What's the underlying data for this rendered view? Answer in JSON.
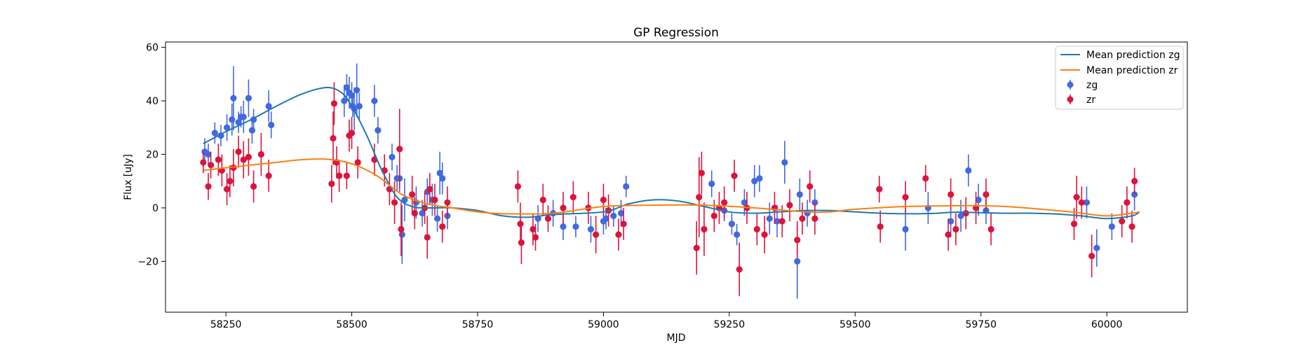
{
  "chart_data": {
    "type": "scatter",
    "title": "GP Regression",
    "xlabel": "MJD",
    "ylabel": "Flux [uJy]",
    "xlim": [
      58130,
      60160
    ],
    "ylim": [
      -39,
      62
    ],
    "xticks": [
      58250,
      58500,
      58750,
      59000,
      59250,
      59500,
      59750,
      60000
    ],
    "yticks": [
      -20,
      0,
      20,
      40,
      60
    ],
    "legend_position": "top-right",
    "colors": {
      "mean_zg": "#1f77b4",
      "mean_zr": "#ff7f0e",
      "zg": "#4169e1",
      "zr": "#dc143c"
    },
    "series": [
      {
        "name": "Mean prediction zg",
        "kind": "line",
        "color": "#1f77b4",
        "points": [
          [
            58205,
            24
          ],
          [
            58250,
            28.5
          ],
          [
            58300,
            33
          ],
          [
            58350,
            38
          ],
          [
            58400,
            42.5
          ],
          [
            58450,
            45
          ],
          [
            58480,
            43
          ],
          [
            58500,
            38
          ],
          [
            58530,
            27
          ],
          [
            58560,
            14
          ],
          [
            58590,
            4
          ],
          [
            58620,
            0.5
          ],
          [
            58650,
            0
          ],
          [
            58700,
            0
          ],
          [
            58750,
            -1
          ],
          [
            58800,
            -3
          ],
          [
            58850,
            -3.5
          ],
          [
            58900,
            -2.5
          ],
          [
            59000,
            -1.5
          ],
          [
            59050,
            1.5
          ],
          [
            59100,
            3
          ],
          [
            59150,
            2.5
          ],
          [
            59200,
            0.5
          ],
          [
            59250,
            -1.5
          ],
          [
            59300,
            -2
          ],
          [
            59350,
            -1.5
          ],
          [
            59400,
            -1
          ],
          [
            59450,
            -1
          ],
          [
            59500,
            -1.5
          ],
          [
            59550,
            -2
          ],
          [
            59600,
            -2.2
          ],
          [
            59650,
            -2.1
          ],
          [
            59700,
            -1.6
          ],
          [
            59750,
            -1.8
          ],
          [
            59800,
            -2
          ],
          [
            59850,
            -2
          ],
          [
            59900,
            -2.3
          ],
          [
            59950,
            -3
          ],
          [
            60000,
            -4
          ],
          [
            60050,
            -3
          ],
          [
            60065,
            -1.5
          ]
        ]
      },
      {
        "name": "Mean prediction zr",
        "kind": "line",
        "color": "#ff7f0e",
        "points": [
          [
            58205,
            14
          ],
          [
            58250,
            15
          ],
          [
            58300,
            16
          ],
          [
            58350,
            17
          ],
          [
            58400,
            18
          ],
          [
            58450,
            18.2
          ],
          [
            58500,
            16.5
          ],
          [
            58550,
            12
          ],
          [
            58600,
            5
          ],
          [
            58650,
            1.5
          ],
          [
            58700,
            0
          ],
          [
            58750,
            -1.5
          ],
          [
            58800,
            -2.2
          ],
          [
            58900,
            -2
          ],
          [
            59000,
            0.5
          ],
          [
            59100,
            1
          ],
          [
            59200,
            1
          ],
          [
            59300,
            0
          ],
          [
            59400,
            -1.5
          ],
          [
            59450,
            -1.5
          ],
          [
            59500,
            -0.5
          ],
          [
            59600,
            0.5
          ],
          [
            59700,
            0.8
          ],
          [
            59750,
            0.8
          ],
          [
            59800,
            0.5
          ],
          [
            59900,
            -1
          ],
          [
            59950,
            -2
          ],
          [
            60000,
            -3
          ],
          [
            60050,
            -2
          ],
          [
            60065,
            -1.5
          ]
        ]
      },
      {
        "name": "zg",
        "kind": "errorbar",
        "color": "#4169e1",
        "points": [
          [
            58208,
            21,
            5
          ],
          [
            58215,
            20,
            4
          ],
          [
            58228,
            28,
            4
          ],
          [
            58240,
            27,
            4
          ],
          [
            58252,
            30,
            5
          ],
          [
            58262,
            33,
            6
          ],
          [
            58265,
            41,
            12
          ],
          [
            58275,
            32,
            4
          ],
          [
            58280,
            34,
            4
          ],
          [
            58285,
            34,
            6
          ],
          [
            58295,
            41,
            7
          ],
          [
            58302,
            29,
            5
          ],
          [
            58305,
            33,
            4
          ],
          [
            58335,
            38,
            6
          ],
          [
            58340,
            31,
            5
          ],
          [
            58485,
            40,
            6
          ],
          [
            58490,
            45,
            5
          ],
          [
            58495,
            43,
            6
          ],
          [
            58500,
            42,
            5
          ],
          [
            58502,
            38,
            4
          ],
          [
            58505,
            37,
            8
          ],
          [
            58510,
            44,
            10
          ],
          [
            58515,
            38,
            5
          ],
          [
            58545,
            40,
            6
          ],
          [
            58552,
            29,
            5
          ],
          [
            58580,
            19,
            5
          ],
          [
            58590,
            11,
            5
          ],
          [
            58595,
            11,
            5
          ],
          [
            58600,
            -10,
            11
          ],
          [
            58605,
            3,
            8
          ],
          [
            58628,
            2,
            6
          ],
          [
            58640,
            -2,
            5
          ],
          [
            58650,
            6,
            5
          ],
          [
            58660,
            3,
            6
          ],
          [
            58670,
            -4,
            5
          ],
          [
            58675,
            13,
            8
          ],
          [
            58680,
            11,
            6
          ],
          [
            58690,
            -3,
            5
          ],
          [
            58870,
            -4,
            5
          ],
          [
            58900,
            -2,
            5
          ],
          [
            58920,
            -7,
            5
          ],
          [
            58945,
            -7,
            4
          ],
          [
            58975,
            -8,
            5
          ],
          [
            59000,
            -5,
            5
          ],
          [
            59005,
            -4,
            4
          ],
          [
            59020,
            -3,
            4
          ],
          [
            59035,
            -2,
            5
          ],
          [
            59045,
            8,
            4
          ],
          [
            59215,
            9,
            5
          ],
          [
            59240,
            -1,
            4
          ],
          [
            59255,
            -6,
            4
          ],
          [
            59265,
            -10,
            4
          ],
          [
            59280,
            2,
            5
          ],
          [
            59300,
            10,
            6
          ],
          [
            59310,
            11,
            5
          ],
          [
            59330,
            -4,
            6
          ],
          [
            59345,
            -5,
            6
          ],
          [
            59360,
            17,
            8
          ],
          [
            59385,
            -20,
            14
          ],
          [
            59390,
            5,
            6
          ],
          [
            59405,
            -2,
            5
          ],
          [
            59420,
            2,
            5
          ],
          [
            59600,
            -8,
            8
          ],
          [
            59645,
            0,
            6
          ],
          [
            59690,
            -5,
            6
          ],
          [
            59710,
            -3,
            6
          ],
          [
            59725,
            14,
            6
          ],
          [
            59745,
            3,
            6
          ],
          [
            59760,
            -1,
            5
          ],
          [
            59960,
            2,
            6
          ],
          [
            59980,
            -15,
            7
          ],
          [
            60010,
            -7,
            5
          ],
          [
            60055,
            5,
            6
          ]
        ]
      },
      {
        "name": "zr",
        "kind": "errorbar",
        "color": "#dc143c",
        "points": [
          [
            58205,
            17,
            4
          ],
          [
            58215,
            8,
            5
          ],
          [
            58220,
            16,
            5
          ],
          [
            58235,
            18,
            6
          ],
          [
            58242,
            14,
            6
          ],
          [
            58252,
            7,
            6
          ],
          [
            58258,
            10,
            6
          ],
          [
            58265,
            15,
            7
          ],
          [
            58275,
            21,
            6
          ],
          [
            58285,
            18,
            7
          ],
          [
            58295,
            19,
            7
          ],
          [
            58305,
            8,
            6
          ],
          [
            58320,
            20,
            8
          ],
          [
            58335,
            12,
            6
          ],
          [
            58460,
            9,
            7
          ],
          [
            58463,
            26,
            10
          ],
          [
            58465,
            39,
            8
          ],
          [
            58470,
            17,
            6
          ],
          [
            58475,
            12,
            6
          ],
          [
            58490,
            12,
            5
          ],
          [
            58495,
            27,
            6
          ],
          [
            58500,
            28,
            6
          ],
          [
            58512,
            17,
            6
          ],
          [
            58545,
            18,
            6
          ],
          [
            58565,
            14,
            6
          ],
          [
            58575,
            7,
            6
          ],
          [
            58585,
            2,
            8
          ],
          [
            58595,
            22,
            15
          ],
          [
            58598,
            -8,
            10
          ],
          [
            58620,
            5,
            7
          ],
          [
            58625,
            -2,
            6
          ],
          [
            58645,
            0,
            6
          ],
          [
            58650,
            -11,
            8
          ],
          [
            58655,
            7,
            6
          ],
          [
            58665,
            3,
            6
          ],
          [
            58680,
            -7,
            6
          ],
          [
            58690,
            2,
            6
          ],
          [
            58830,
            8,
            6
          ],
          [
            58835,
            -6,
            8
          ],
          [
            58837,
            -13,
            8
          ],
          [
            58860,
            -8,
            6
          ],
          [
            58865,
            -11,
            5
          ],
          [
            58880,
            3,
            6
          ],
          [
            58890,
            -4,
            5
          ],
          [
            58920,
            0,
            6
          ],
          [
            58940,
            4,
            6
          ],
          [
            58970,
            0,
            6
          ],
          [
            58985,
            -10,
            7
          ],
          [
            59000,
            3,
            6
          ],
          [
            59010,
            -1,
            6
          ],
          [
            59030,
            -10,
            6
          ],
          [
            59040,
            -6,
            6
          ],
          [
            59185,
            -15,
            10
          ],
          [
            59190,
            4,
            15
          ],
          [
            59195,
            13,
            8
          ],
          [
            59200,
            -8,
            10
          ],
          [
            59220,
            -3,
            6
          ],
          [
            59230,
            0,
            6
          ],
          [
            59240,
            2,
            6
          ],
          [
            59260,
            12,
            6
          ],
          [
            59270,
            -23,
            10
          ],
          [
            59285,
            0,
            6
          ],
          [
            59305,
            -8,
            6
          ],
          [
            59320,
            -10,
            7
          ],
          [
            59340,
            0,
            6
          ],
          [
            59355,
            -5,
            6
          ],
          [
            59370,
            1,
            6
          ],
          [
            59385,
            -12,
            7
          ],
          [
            59395,
            -4,
            6
          ],
          [
            59410,
            8,
            6
          ],
          [
            59420,
            -4,
            6
          ],
          [
            59548,
            7,
            5
          ],
          [
            59550,
            -7,
            6
          ],
          [
            59600,
            4,
            6
          ],
          [
            59640,
            11,
            5
          ],
          [
            59685,
            -10,
            6
          ],
          [
            59690,
            5,
            6
          ],
          [
            59700,
            -8,
            6
          ],
          [
            59720,
            -2,
            6
          ],
          [
            59740,
            0,
            6
          ],
          [
            59760,
            5,
            6
          ],
          [
            59770,
            -8,
            6
          ],
          [
            59935,
            -6,
            6
          ],
          [
            59940,
            4,
            8
          ],
          [
            59950,
            2,
            6
          ],
          [
            59970,
            -18,
            8
          ],
          [
            60030,
            -5,
            6
          ],
          [
            60040,
            2,
            6
          ],
          [
            60050,
            -7,
            6
          ],
          [
            60055,
            10,
            5
          ]
        ]
      }
    ]
  }
}
